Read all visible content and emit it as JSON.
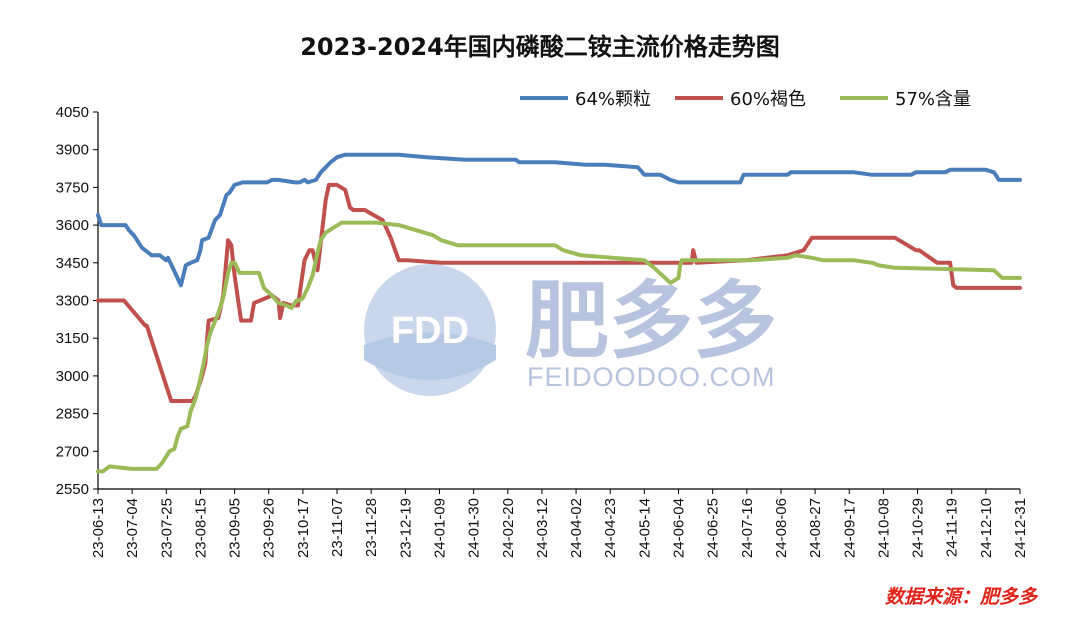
{
  "chart_data": {
    "type": "line",
    "title": "2023-2024年国内磷酸二铵主流价格走势图",
    "source": "数据来源：肥多多",
    "watermark": {
      "brand": "肥多多",
      "logo": "FDD",
      "url": "FEIDOODOO.COM"
    },
    "ylim": [
      2550,
      4050
    ],
    "yticks": [
      2550,
      2700,
      2850,
      3000,
      3150,
      3300,
      3450,
      3600,
      3750,
      3900,
      4050
    ],
    "x_start": "2023-06-13",
    "x_end": "2024-12-31",
    "xtick_labels": [
      "23-06-13",
      "23-07-04",
      "23-07-25",
      "23-08-15",
      "23-09-05",
      "23-09-26",
      "23-10-17",
      "23-11-07",
      "23-11-28",
      "23-12-19",
      "24-01-09",
      "24-01-30",
      "24-02-20",
      "24-03-12",
      "24-04-02",
      "24-04-23",
      "24-05-14",
      "24-06-04",
      "24-06-25",
      "24-07-16",
      "24-08-06",
      "24-08-27",
      "24-09-17",
      "24-10-08",
      "24-10-29",
      "24-11-19",
      "24-12-10",
      "24-12-31"
    ],
    "legend_position": "top-right",
    "series": [
      {
        "name": "64%颗粒",
        "color": "#4a7ebb",
        "x": [
          "2023-06-13",
          "2023-06-15",
          "2023-06-26",
          "2023-06-30",
          "2023-07-02",
          "2023-07-05",
          "2023-07-10",
          "2023-07-16",
          "2023-07-21",
          "2023-07-23",
          "2023-07-25",
          "2023-07-26",
          "2023-07-29",
          "2023-08-03",
          "2023-08-06",
          "2023-08-09",
          "2023-08-13",
          "2023-08-15",
          "2023-08-16",
          "2023-08-20",
          "2023-08-24",
          "2023-08-27",
          "2023-08-29",
          "2023-08-31",
          "2023-09-02",
          "2023-09-05",
          "2023-09-10",
          "2023-09-20",
          "2023-09-25",
          "2023-09-28",
          "2023-10-02",
          "2023-10-12",
          "2023-10-15",
          "2023-10-18",
          "2023-10-20",
          "2023-10-25",
          "2023-10-28",
          "2023-10-31",
          "2023-11-03",
          "2023-11-05",
          "2023-11-07",
          "2023-11-12",
          "2023-12-15",
          "2024-01-01",
          "2024-01-25",
          "2024-02-25",
          "2024-02-27",
          "2024-03-05",
          "2024-03-20",
          "2024-04-08",
          "2024-04-20",
          "2024-05-10",
          "2024-05-14",
          "2024-05-24",
          "2024-05-30",
          "2024-06-04",
          "2024-06-20",
          "2024-07-01",
          "2024-07-12",
          "2024-07-14",
          "2024-08-01",
          "2024-08-10",
          "2024-08-12",
          "2024-09-20",
          "2024-10-01",
          "2024-10-25",
          "2024-10-28",
          "2024-11-15",
          "2024-11-18",
          "2024-12-05",
          "2024-12-10",
          "2024-12-15",
          "2024-12-18",
          "2024-12-22",
          "2024-12-31"
        ],
        "values": [
          3640,
          3600,
          3600,
          3600,
          3580,
          3560,
          3510,
          3480,
          3480,
          3470,
          3460,
          3470,
          3430,
          3360,
          3440,
          3450,
          3460,
          3500,
          3540,
          3550,
          3620,
          3640,
          3680,
          3720,
          3730,
          3760,
          3770,
          3770,
          3770,
          3780,
          3780,
          3770,
          3770,
          3780,
          3770,
          3780,
          3810,
          3830,
          3850,
          3860,
          3870,
          3880,
          3880,
          3870,
          3860,
          3860,
          3850,
          3850,
          3850,
          3840,
          3840,
          3830,
          3800,
          3800,
          3780,
          3770,
          3770,
          3770,
          3770,
          3800,
          3800,
          3800,
          3810,
          3810,
          3800,
          3800,
          3810,
          3810,
          3820,
          3820,
          3820,
          3810,
          3780,
          3780,
          3780
        ]
      },
      {
        "name": "60%褐色",
        "color": "#c0504d",
        "x": [
          "2023-06-13",
          "2023-06-28",
          "2023-06-29",
          "2023-07-12",
          "2023-07-13",
          "2023-07-28",
          "2023-08-02",
          "2023-08-07",
          "2023-08-10",
          "2023-08-12",
          "2023-08-14",
          "2023-08-16",
          "2023-08-18",
          "2023-08-20",
          "2023-08-26",
          "2023-08-29",
          "2023-09-01",
          "2023-09-03",
          "2023-09-05",
          "2023-09-07",
          "2023-09-09",
          "2023-09-15",
          "2023-09-17",
          "2023-09-28",
          "2023-10-02",
          "2023-10-03",
          "2023-10-05",
          "2023-10-10",
          "2023-10-14",
          "2023-10-18",
          "2023-10-21",
          "2023-10-23",
          "2023-10-26",
          "2023-10-31",
          "2023-11-02",
          "2023-11-04",
          "2023-11-07",
          "2023-11-12",
          "2023-11-15",
          "2023-11-17",
          "2023-11-24",
          "2023-12-05",
          "2023-12-10",
          "2023-12-15",
          "2023-12-20",
          "2024-01-10",
          "2024-03-15",
          "2024-05-14",
          "2024-06-12",
          "2024-06-13",
          "2024-06-15",
          "2024-07-15",
          "2024-08-10",
          "2024-08-20",
          "2024-08-25",
          "2024-10-15",
          "2024-10-28",
          "2024-10-30",
          "2024-11-10",
          "2024-11-12",
          "2024-11-18",
          "2024-11-20",
          "2024-11-22",
          "2024-12-05",
          "2024-12-31"
        ],
        "values": [
          3300,
          3300,
          3300,
          3200,
          3200,
          2900,
          2900,
          2900,
          2900,
          2920,
          2960,
          3000,
          3050,
          3220,
          3230,
          3320,
          3540,
          3520,
          3400,
          3310,
          3220,
          3220,
          3290,
          3320,
          3300,
          3230,
          3290,
          3280,
          3280,
          3460,
          3500,
          3500,
          3420,
          3700,
          3760,
          3760,
          3760,
          3740,
          3670,
          3660,
          3660,
          3620,
          3550,
          3460,
          3460,
          3450,
          3450,
          3450,
          3450,
          3500,
          3450,
          3460,
          3480,
          3500,
          3550,
          3550,
          3500,
          3500,
          3450,
          3450,
          3450,
          3360,
          3350,
          3350,
          3350
        ]
      },
      {
        "name": "57%含量",
        "color": "#9bbb59",
        "x": [
          "2023-06-13",
          "2023-06-16",
          "2023-06-20",
          "2023-07-04",
          "2023-07-19",
          "2023-07-22",
          "2023-07-25",
          "2023-07-27",
          "2023-07-30",
          "2023-08-01",
          "2023-08-03",
          "2023-08-07",
          "2023-08-09",
          "2023-08-12",
          "2023-08-15",
          "2023-08-17",
          "2023-08-19",
          "2023-08-21",
          "2023-08-26",
          "2023-08-29",
          "2023-09-01",
          "2023-09-03",
          "2023-09-05",
          "2023-09-08",
          "2023-09-15",
          "2023-09-20",
          "2023-09-23",
          "2023-09-28",
          "2023-10-02",
          "2023-10-07",
          "2023-10-10",
          "2023-10-13",
          "2023-10-15",
          "2023-10-17",
          "2023-10-20",
          "2023-10-23",
          "2023-10-26",
          "2023-10-28",
          "2023-10-31",
          "2023-11-05",
          "2023-11-10",
          "2023-11-20",
          "2023-12-01",
          "2023-12-15",
          "2024-01-05",
          "2024-01-10",
          "2024-01-20",
          "2024-02-15",
          "2024-03-10",
          "2024-03-20",
          "2024-03-25",
          "2024-04-05",
          "2024-05-14",
          "2024-05-20",
          "2024-05-25",
          "2024-05-30",
          "2024-06-04",
          "2024-06-05",
          "2024-06-06",
          "2024-07-15",
          "2024-07-18",
          "2024-08-10",
          "2024-08-15",
          "2024-08-25",
          "2024-09-01",
          "2024-09-15",
          "2024-09-20",
          "2024-10-01",
          "2024-10-05",
          "2024-10-15",
          "2024-12-15",
          "2024-12-20",
          "2024-12-31"
        ],
        "values": [
          2620,
          2620,
          2640,
          2630,
          2630,
          2650,
          2680,
          2700,
          2710,
          2760,
          2790,
          2800,
          2860,
          2910,
          2990,
          3050,
          3120,
          3170,
          3250,
          3310,
          3410,
          3450,
          3450,
          3410,
          3410,
          3410,
          3350,
          3320,
          3290,
          3280,
          3270,
          3300,
          3300,
          3310,
          3350,
          3400,
          3490,
          3540,
          3570,
          3590,
          3610,
          3610,
          3610,
          3600,
          3560,
          3540,
          3520,
          3520,
          3520,
          3520,
          3500,
          3480,
          3460,
          3430,
          3400,
          3370,
          3390,
          3440,
          3460,
          3460,
          3460,
          3470,
          3480,
          3470,
          3460,
          3460,
          3460,
          3450,
          3440,
          3430,
          3420,
          3390,
          3390
        ]
      }
    ]
  }
}
